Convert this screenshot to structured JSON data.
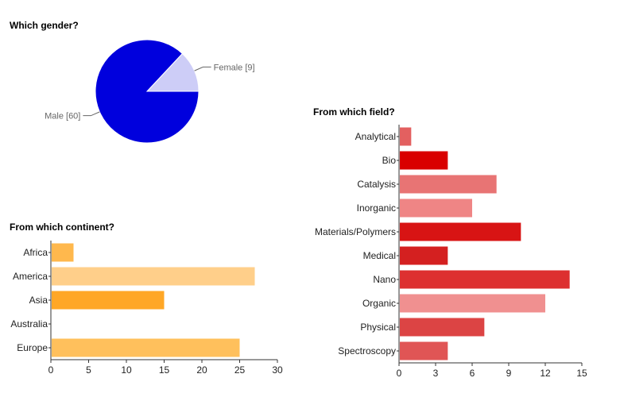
{
  "chart_data": [
    {
      "type": "pie",
      "title": "Which gender?",
      "slices": [
        {
          "label": "Male",
          "value": 60,
          "display": "Male [60]",
          "color": "#0000dd"
        },
        {
          "label": "Female",
          "value": 9,
          "display": "Female [9]",
          "color": "#cdcdf7"
        }
      ]
    },
    {
      "type": "bar",
      "orientation": "horizontal",
      "title": "From which continent?",
      "categories": [
        "Africa",
        "America",
        "Asia",
        "Australia",
        "Europe"
      ],
      "values": [
        3,
        27,
        15,
        0,
        25
      ],
      "colors": [
        "#ffb84d",
        "#ffcf8a",
        "#ffa726",
        "#ffd9a0",
        "#ffc05c"
      ],
      "xlim": [
        0,
        30
      ],
      "xticks": [
        0,
        5,
        10,
        15,
        20,
        25,
        30
      ],
      "xlabel": "",
      "ylabel": ""
    },
    {
      "type": "bar",
      "orientation": "horizontal",
      "title": "From which field?",
      "categories": [
        "Analytical",
        "Bio",
        "Catalysis",
        "Inorganic",
        "Materials/Polymers",
        "Medical",
        "Nano",
        "Organic",
        "Physical",
        "Spectroscopy"
      ],
      "values": [
        1,
        4,
        8,
        6,
        10,
        4,
        14,
        12,
        7,
        4
      ],
      "colors": [
        "#e36060",
        "#d90000",
        "#e87474",
        "#ef8585",
        "#d81414",
        "#d42020",
        "#dd3030",
        "#f09090",
        "#dc4444",
        "#e05555"
      ],
      "xlim": [
        0,
        15
      ],
      "xticks": [
        0,
        3,
        6,
        9,
        12,
        15
      ],
      "xlabel": "",
      "ylabel": ""
    }
  ]
}
